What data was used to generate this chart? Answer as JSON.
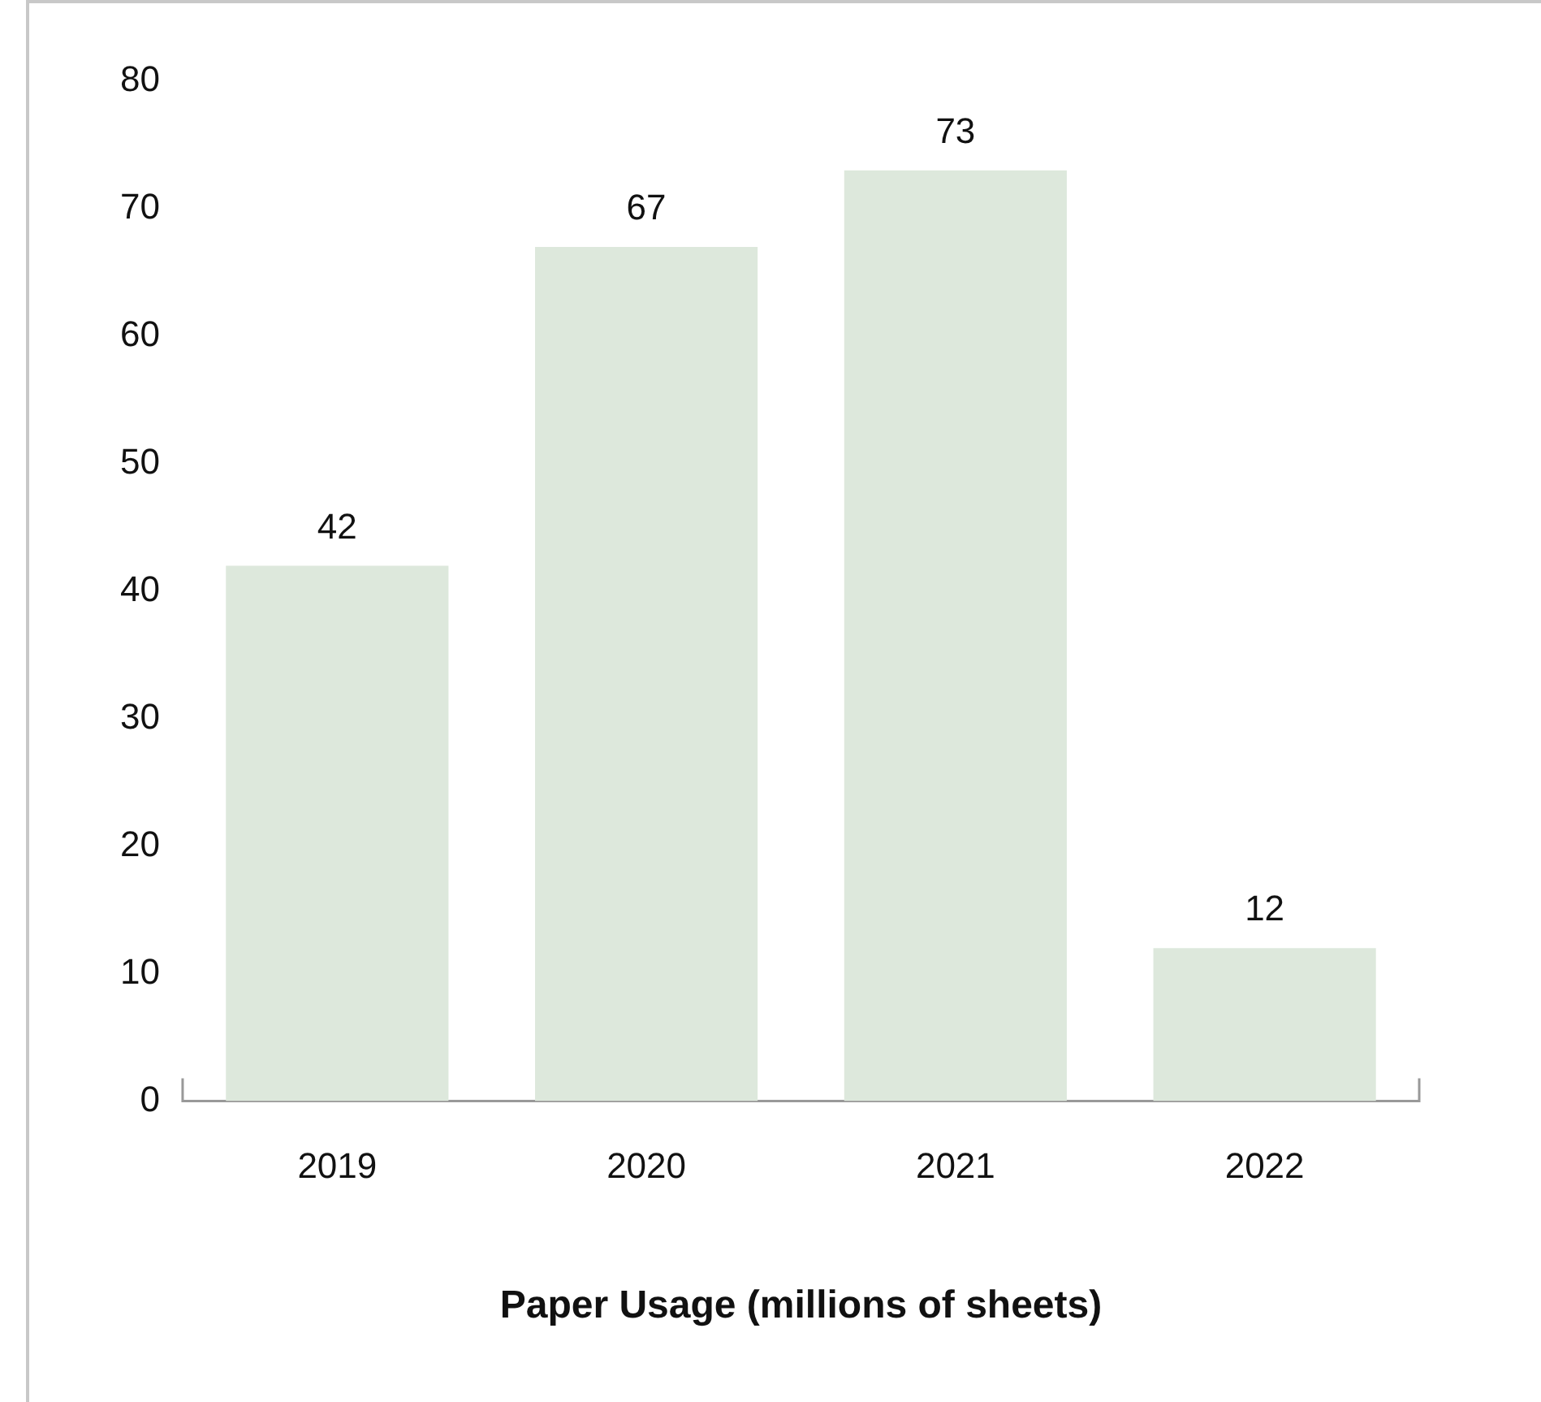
{
  "chart_data": {
    "type": "bar",
    "xlabel": "Paper Usage (millions of sheets)",
    "categories": [
      "2019",
      "2020",
      "2021",
      "2022"
    ],
    "values": [
      42,
      67,
      73,
      12
    ],
    "color": "#dde8dc",
    "ylim": [
      0,
      80
    ],
    "yticks": [
      0,
      10,
      20,
      30,
      40,
      50,
      60,
      70,
      80
    ],
    "grid": false,
    "legend": false,
    "data_labels": true
  }
}
